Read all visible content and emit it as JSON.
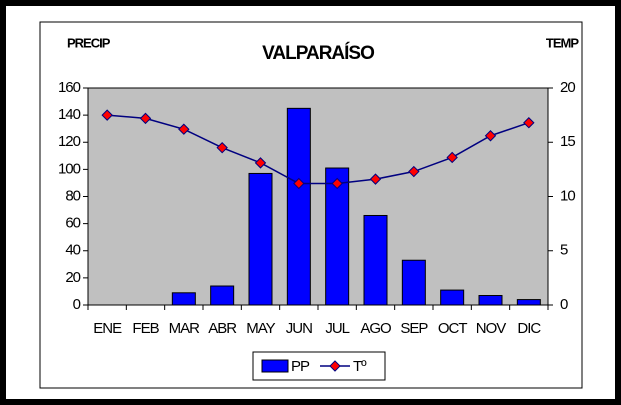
{
  "chart_data": {
    "type": "bar",
    "title": "VALPARAÍSO",
    "y_label": "PRECIP",
    "y2_label": "TEMP",
    "categories": [
      "ENE",
      "FEB",
      "MAR",
      "ABR",
      "MAY",
      "JUN",
      "JUL",
      "AGO",
      "SEP",
      "OCT",
      "NOV",
      "DIC"
    ],
    "series": [
      {
        "name": "PP",
        "type": "bar",
        "color": "#0000ff",
        "values": [
          0,
          0,
          9,
          14,
          97,
          145,
          101,
          66,
          33,
          11,
          7,
          4
        ]
      },
      {
        "name": "Tº",
        "type": "line",
        "axis": "y2",
        "color": "#000080",
        "marker_color": "#ff0000",
        "values": [
          17.5,
          17.2,
          16.2,
          14.5,
          13.1,
          11.2,
          11.2,
          11.6,
          12.3,
          13.6,
          15.6,
          16.8
        ]
      }
    ],
    "ylim": [
      0,
      160
    ],
    "yticks": [
      0,
      20,
      40,
      60,
      80,
      100,
      120,
      140,
      160
    ],
    "y2lim": [
      0,
      20
    ],
    "y2ticks": [
      0,
      5,
      10,
      15,
      20
    ],
    "plot_background": "#c0c0c0",
    "legend": "bottom"
  }
}
